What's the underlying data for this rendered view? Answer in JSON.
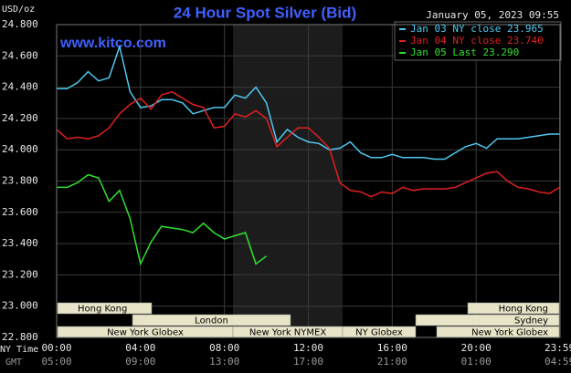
{
  "chart_data": {
    "type": "line",
    "title": "24 Hour Spot Silver (Bid)",
    "subtitle": "January 05, 2023 09:55",
    "y_label": "USD/oz",
    "watermark": "www.kitco.com",
    "x_row_labels": [
      "NY Time",
      "GMT"
    ],
    "xlim": [
      0,
      24
    ],
    "xticks": [
      {
        "value": 0,
        "label": "00:00"
      },
      {
        "value": 4,
        "label": "04:00"
      },
      {
        "value": 8,
        "label": "08:00"
      },
      {
        "value": 12,
        "label": "12:00"
      },
      {
        "value": 16,
        "label": "16:00"
      },
      {
        "value": 20,
        "label": "20:00"
      },
      {
        "value": 23.98,
        "label": "23:59"
      }
    ],
    "gmt_labels": [
      "05:00",
      "09:00",
      "13:00",
      "17:00",
      "21:00",
      "01:00",
      "04:59"
    ],
    "ylim": [
      22.8,
      24.8
    ],
    "yticks": [
      {
        "value": 22.8,
        "label": "22.800"
      },
      {
        "value": 23.0,
        "label": "23.000"
      },
      {
        "value": 23.2,
        "label": "23.200"
      },
      {
        "value": 23.4,
        "label": "23.400"
      },
      {
        "value": 23.6,
        "label": "23.600"
      },
      {
        "value": 23.8,
        "label": "23.800"
      },
      {
        "value": 24.0,
        "label": "24.000"
      },
      {
        "value": 24.2,
        "label": "24.200"
      },
      {
        "value": 24.4,
        "label": "24.400"
      },
      {
        "value": 24.6,
        "label": "24.600"
      },
      {
        "value": 24.8,
        "label": "24.800"
      }
    ],
    "grid": true,
    "legend": "top-right",
    "sessions": [
      "Hong Kong",
      "London",
      "New York Globex",
      "New York NYMEX",
      "NY Globex",
      "Sydney",
      "Hong Kong",
      "New York Globex"
    ],
    "series": [
      {
        "name": "Jan 03 NY close 23.965",
        "color": "#4ec8f0",
        "x": [
          0,
          0.5,
          1,
          1.5,
          2,
          2.5,
          3,
          3.5,
          4,
          4.5,
          5,
          5.5,
          6,
          6.5,
          7,
          7.5,
          8,
          8.5,
          9,
          9.5,
          10,
          10.5,
          11,
          11.5,
          12,
          12.5,
          13,
          13.5,
          14,
          14.5,
          15,
          15.5,
          16,
          16.5,
          17,
          17.5,
          18,
          18.5,
          19,
          19.5,
          20,
          20.5,
          21,
          21.5,
          22,
          22.5,
          23,
          23.5,
          23.98
        ],
        "values": [
          24.39,
          24.39,
          24.43,
          24.5,
          24.44,
          24.46,
          24.66,
          24.37,
          24.27,
          24.28,
          24.32,
          24.32,
          24.3,
          24.23,
          24.25,
          24.27,
          24.27,
          24.35,
          24.33,
          24.4,
          24.3,
          24.05,
          24.13,
          24.08,
          24.05,
          24.04,
          24.0,
          24.01,
          24.05,
          23.98,
          23.95,
          23.95,
          23.97,
          23.95,
          23.95,
          23.95,
          23.94,
          23.94,
          23.98,
          24.02,
          24.04,
          24.01,
          24.07,
          24.07,
          24.07,
          24.08,
          24.09,
          24.1,
          24.1
        ]
      },
      {
        "name": "Jan 04 NY close 23.740",
        "color": "#e02020",
        "x": [
          0,
          0.5,
          1,
          1.5,
          2,
          2.5,
          3,
          3.5,
          4,
          4.5,
          5,
          5.5,
          6,
          6.5,
          7,
          7.5,
          8,
          8.5,
          9,
          9.5,
          10,
          10.5,
          11,
          11.5,
          12,
          12.5,
          13,
          13.5,
          14,
          14.5,
          15,
          15.5,
          16,
          16.5,
          17,
          17.5,
          18,
          18.5,
          19,
          19.5,
          20,
          20.5,
          21,
          21.5,
          22,
          22.5,
          23,
          23.5,
          23.98
        ],
        "values": [
          24.13,
          24.07,
          24.08,
          24.07,
          24.09,
          24.14,
          24.23,
          24.29,
          24.33,
          24.26,
          24.35,
          24.37,
          24.33,
          24.29,
          24.27,
          24.14,
          24.15,
          24.23,
          24.21,
          24.25,
          24.2,
          24.02,
          24.08,
          24.14,
          24.14,
          24.08,
          24.01,
          23.79,
          23.74,
          23.73,
          23.7,
          23.73,
          23.72,
          23.76,
          23.74,
          23.75,
          23.75,
          23.75,
          23.76,
          23.79,
          23.82,
          23.85,
          23.86,
          23.8,
          23.76,
          23.75,
          23.73,
          23.72,
          23.76
        ]
      },
      {
        "name": "Jan 05 Last 23.290",
        "color": "#30e030",
        "x": [
          0,
          0.5,
          1,
          1.5,
          2,
          2.5,
          3,
          3.5,
          4,
          4.5,
          5,
          5.5,
          6,
          6.5,
          7,
          7.5,
          8,
          8.5,
          9,
          9.5,
          10
        ],
        "values": [
          23.76,
          23.76,
          23.79,
          23.84,
          23.82,
          23.67,
          23.74,
          23.56,
          23.27,
          23.41,
          23.51,
          23.5,
          23.49,
          23.47,
          23.53,
          23.47,
          23.43,
          23.45,
          23.47,
          23.27,
          23.32
        ]
      }
    ]
  }
}
